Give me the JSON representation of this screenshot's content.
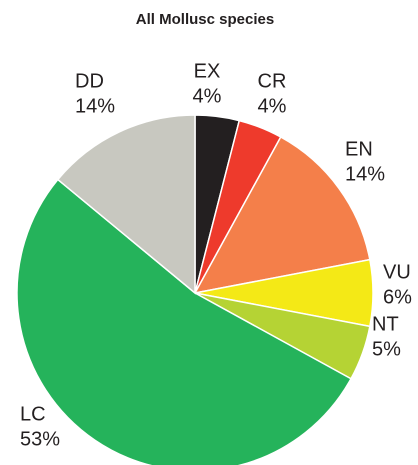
{
  "chart_data": {
    "type": "pie",
    "title": "All Mollusc species",
    "categories": [
      "EX",
      "CR",
      "EN",
      "VU",
      "NT",
      "LC",
      "DD"
    ],
    "values": [
      4,
      4,
      14,
      6,
      5,
      53,
      14
    ],
    "value_labels": [
      "4%",
      "4%",
      "14%",
      "6%",
      "5%",
      "53%",
      "14%"
    ],
    "colors": [
      "#231f20",
      "#ee3a2c",
      "#f47f4a",
      "#f4e916",
      "#b5d334",
      "#25b35b",
      "#c8c8c0"
    ]
  }
}
